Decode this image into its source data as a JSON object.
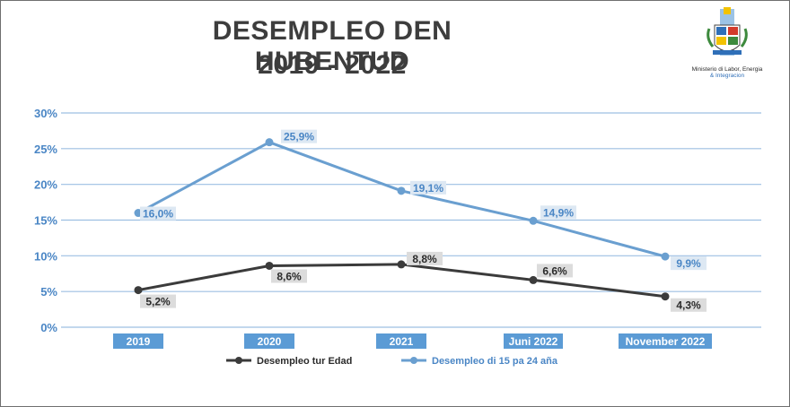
{
  "header": {
    "title_line1": "DESEMPLEO DEN HUBENTUD",
    "title_line2": "2019 - 2022"
  },
  "logo": {
    "icon": "coat-of-arms-icon",
    "caption_line1": "Ministerio di Labor, Energia",
    "caption_line2": "& Integracion"
  },
  "colors": {
    "youth_line": "#6a9fd0",
    "total_line": "#3b3b3b",
    "grid": "#9dbfe2",
    "axis_text": "#4a86c5",
    "label_bg_blue": "#dde8f3",
    "label_bg_gray": "#dcdcdc",
    "category_bg": "#5b9bd5"
  },
  "chart_data": {
    "type": "line",
    "title": "DESEMPLEO DEN HUBENTUD 2019 - 2022",
    "categories": [
      "2019",
      "2020",
      "2021",
      "Juni 2022",
      "November 2022"
    ],
    "ylim": [
      0,
      30
    ],
    "yticks": [
      0,
      5,
      10,
      15,
      20,
      25,
      30
    ],
    "ytick_labels": [
      "0%",
      "5%",
      "10%",
      "15%",
      "20%",
      "25%",
      "30%"
    ],
    "legend_position": "bottom",
    "series": [
      {
        "name": "Desempleo tur Edad",
        "values": [
          5.2,
          8.6,
          8.8,
          6.6,
          4.3
        ],
        "labels": [
          "5,2%",
          "8,6%",
          "8,8%",
          "6,6%",
          "4,3%"
        ]
      },
      {
        "name": "Desempleo di 15 pa 24 aña",
        "values": [
          16.0,
          25.9,
          19.1,
          14.9,
          9.9
        ],
        "labels": [
          "16,0%",
          "25,9%",
          "19,1%",
          "14,9%",
          "9,9%"
        ]
      }
    ]
  }
}
